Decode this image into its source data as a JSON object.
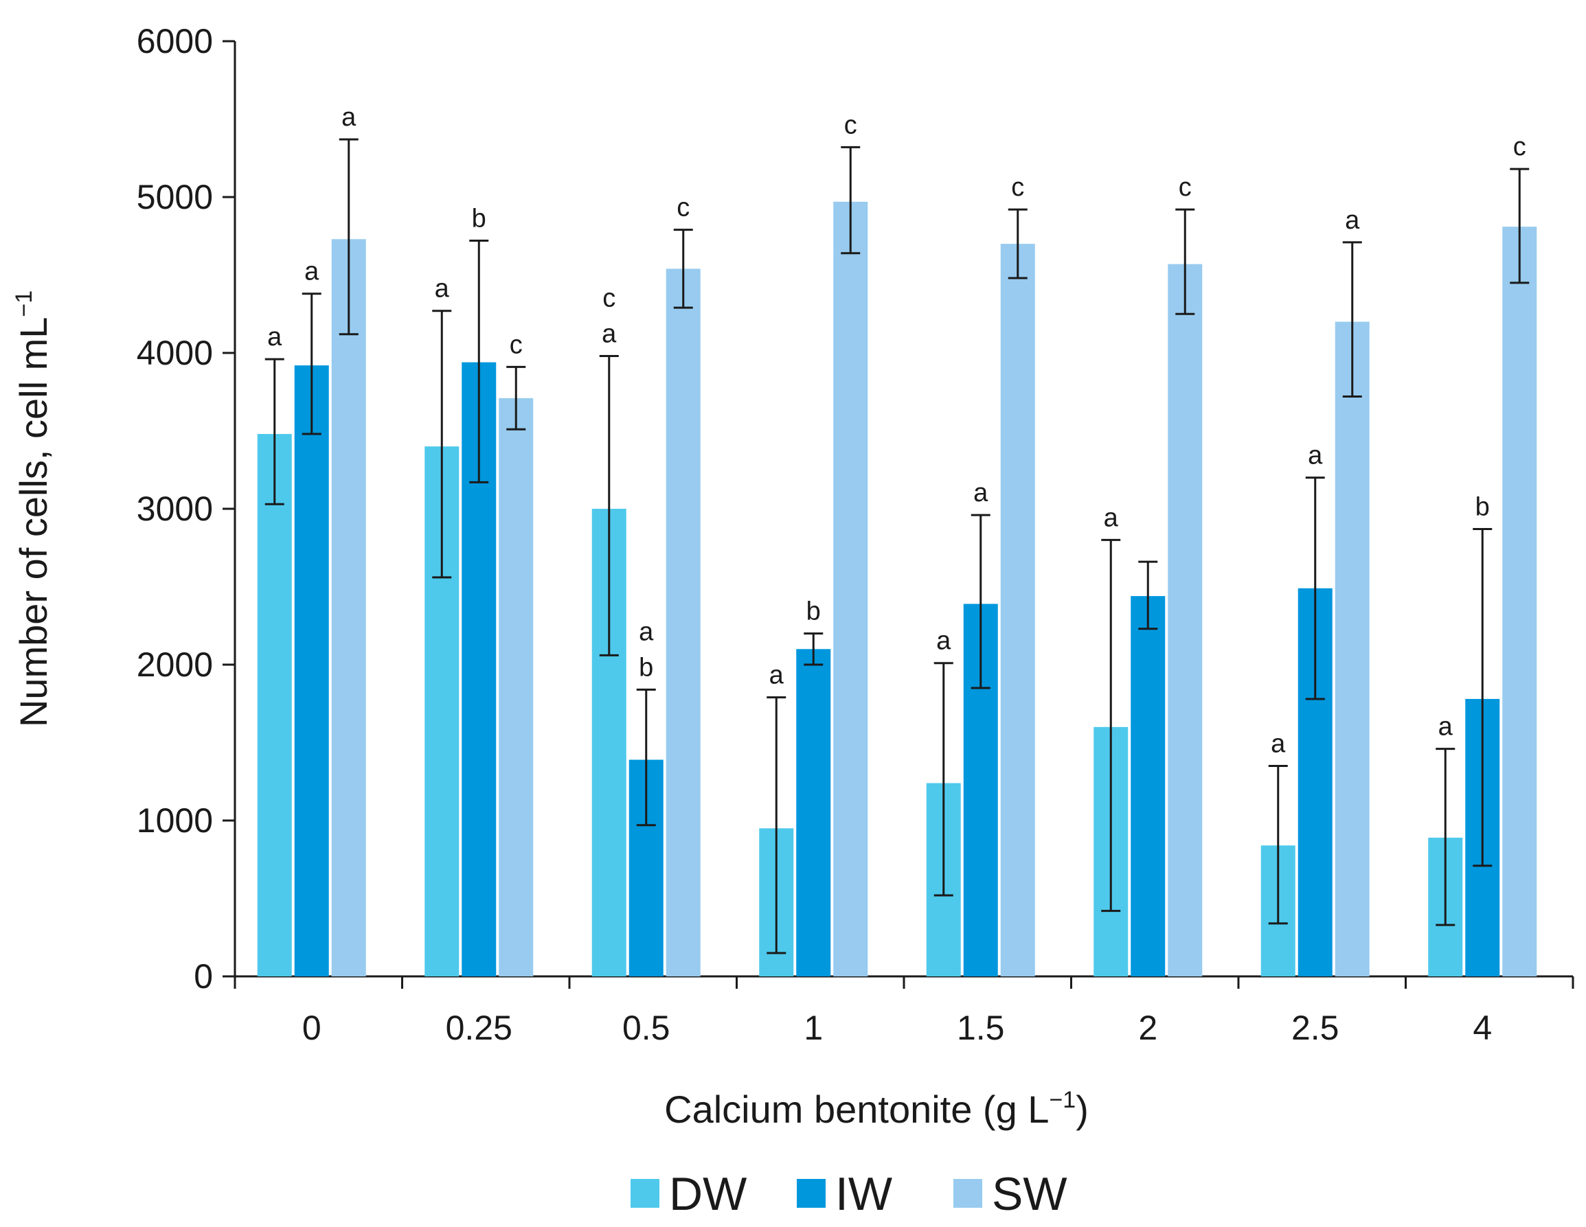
{
  "chart_data": {
    "type": "bar",
    "title": "",
    "xlabel": "Calcium bentonite (g L",
    "xlabel_sup": "−1",
    "xlabel_suffix": ")",
    "ylabel": "Number of cells, cell mL",
    "ylabel_sup": "−1",
    "ylim": [
      0,
      6000
    ],
    "yticks": [
      0,
      1000,
      2000,
      3000,
      4000,
      5000,
      6000
    ],
    "categories": [
      "0",
      "0.25",
      "0.5",
      "1",
      "1.5",
      "2",
      "2.5",
      "4"
    ],
    "legend_position": "bottom-center",
    "series": [
      {
        "name": "DW",
        "color": "#4ec9ec",
        "values": [
          3480,
          3400,
          3000,
          950,
          1240,
          1600,
          840,
          890
        ],
        "error_low": [
          3030,
          2560,
          2060,
          150,
          520,
          420,
          340,
          330
        ],
        "error_high": [
          3960,
          4270,
          3980,
          1790,
          2010,
          2800,
          1350,
          1460
        ],
        "letters": [
          "a",
          "a",
          "c\na",
          "a",
          "a",
          "a",
          "a",
          "a"
        ]
      },
      {
        "name": "IW",
        "color": "#0097dd",
        "values": [
          3920,
          3940,
          1390,
          2100,
          2390,
          2440,
          2490,
          1780
        ],
        "error_low": [
          3480,
          3170,
          970,
          2000,
          1850,
          2230,
          1780,
          710
        ],
        "error_high": [
          4380,
          4720,
          1840,
          2200,
          2960,
          2660,
          3200,
          2870
        ],
        "letters": [
          "a",
          "b",
          "a\nb",
          "b",
          "a",
          "",
          "a",
          "b"
        ]
      },
      {
        "name": "SW",
        "color": "#98cbef",
        "values": [
          4730,
          3710,
          4540,
          4970,
          4700,
          4570,
          4200,
          4810
        ],
        "error_low": [
          4120,
          3510,
          4290,
          4640,
          4480,
          4250,
          3720,
          4450
        ],
        "error_high": [
          5370,
          3910,
          4790,
          5320,
          4920,
          4920,
          4710,
          5180
        ],
        "letters": [
          "a",
          "c",
          "c",
          "c",
          "c",
          "c",
          "a",
          "c"
        ]
      }
    ]
  }
}
